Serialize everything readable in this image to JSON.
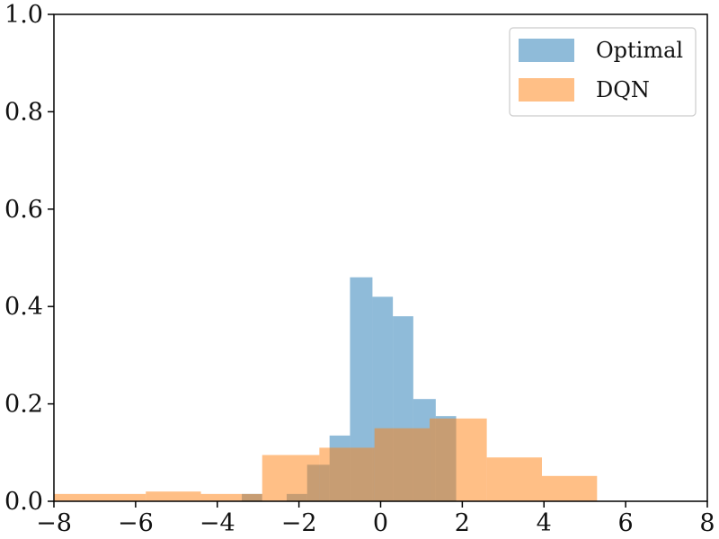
{
  "chart_data": {
    "type": "histogram",
    "xlim": [
      -8,
      8
    ],
    "ylim": [
      0,
      1.0
    ],
    "x_ticks": [
      -8,
      -6,
      -4,
      -2,
      0,
      2,
      4,
      6,
      8
    ],
    "y_ticks": [
      0.0,
      0.2,
      0.4,
      0.6,
      0.8,
      1.0
    ],
    "x_tick_labels": [
      "−8",
      "−6",
      "−4",
      "−2",
      "0",
      "2",
      "4",
      "6",
      "8"
    ],
    "y_tick_labels": [
      "0.0",
      "0.2",
      "0.4",
      "0.6",
      "0.8",
      "1.0"
    ],
    "grid": false,
    "legend": {
      "placement": "top-right",
      "entries": [
        "Optimal",
        "DQN"
      ]
    },
    "series": [
      {
        "name": "Optimal",
        "color": "#1f77b4",
        "alpha": 0.5,
        "bins": [
          [
            -3.4,
            -2.9,
            0.015
          ],
          [
            -2.3,
            -1.8,
            0.015
          ],
          [
            -1.8,
            -1.25,
            0.075
          ],
          [
            -1.25,
            -0.75,
            0.135
          ],
          [
            -0.75,
            -0.2,
            0.46
          ],
          [
            -0.2,
            0.3,
            0.42
          ],
          [
            0.3,
            0.8,
            0.38
          ],
          [
            0.8,
            1.35,
            0.21
          ],
          [
            1.35,
            1.85,
            0.175
          ]
        ]
      },
      {
        "name": "DQN",
        "color": "#ff7f0e",
        "alpha": 0.5,
        "bins": [
          [
            -8,
            -5.75,
            0.015
          ],
          [
            -5.75,
            -4.4,
            0.02
          ],
          [
            -4.4,
            -2.9,
            0.015
          ],
          [
            -2.9,
            -1.5,
            0.095
          ],
          [
            -1.5,
            -0.15,
            0.11
          ],
          [
            -0.15,
            1.2,
            0.15
          ],
          [
            1.2,
            2.6,
            0.17
          ],
          [
            2.6,
            3.95,
            0.09
          ],
          [
            3.95,
            5.3,
            0.052
          ]
        ]
      }
    ]
  }
}
